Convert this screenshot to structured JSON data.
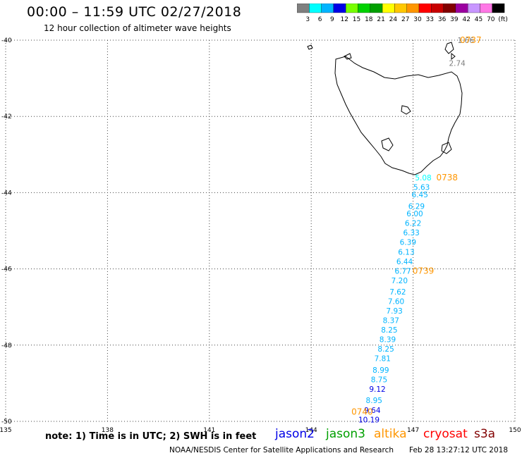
{
  "header": {
    "title": "00:00 – 11:59 UTC 02/27/2018",
    "subtitle": "12 hour collection of altimeter wave heights"
  },
  "colorbar": {
    "colors": [
      "#7f7f7f",
      "#00ffff",
      "#00b4ff",
      "#0000e6",
      "#78ff00",
      "#00d200",
      "#00a000",
      "#ffff00",
      "#ffc800",
      "#ff9600",
      "#ff0000",
      "#c80000",
      "#820000",
      "#9b00a0",
      "#c896ff",
      "#ff78e6",
      "#000000"
    ],
    "labels": [
      "3",
      "6",
      "9",
      "12",
      "15",
      "18",
      "21",
      "24",
      "27",
      "30",
      "33",
      "36",
      "39",
      "42",
      "45",
      "70",
      "(ft)"
    ]
  },
  "map": {
    "lon_range": [
      135,
      150
    ],
    "lat_range": [
      -50,
      -40
    ],
    "lon_ticks": [
      "135",
      "138",
      "141",
      "144",
      "147",
      "150"
    ],
    "lat_ticks": [
      "-40",
      "-42",
      "-44",
      "-46",
      "-48",
      "-50"
    ],
    "grid": "dotted"
  },
  "time_labels": [
    {
      "text": "0737",
      "lon": 148.7,
      "lat": -40.0
    },
    {
      "text": "0738",
      "lon": 148.0,
      "lat": -43.6
    },
    {
      "text": "0739",
      "lon": 147.3,
      "lat": -46.05
    },
    {
      "text": "0740",
      "lon": 145.5,
      "lat": -49.75
    }
  ],
  "wave_points": [
    {
      "v": "1.66",
      "lon": 148.55,
      "lat": -40.0,
      "c": "#7f7f7f"
    },
    {
      "v": "2.74",
      "lon": 148.3,
      "lat": -40.6,
      "c": "#7f7f7f"
    },
    {
      "v": "5.08",
      "lon": 147.3,
      "lat": -43.6,
      "c": "#00ffff"
    },
    {
      "v": "5.63",
      "lon": 147.25,
      "lat": -43.85,
      "c": "#00b4ff"
    },
    {
      "v": "6.45",
      "lon": 147.2,
      "lat": -44.05,
      "c": "#00b4ff"
    },
    {
      "v": "6.29",
      "lon": 147.1,
      "lat": -44.35,
      "c": "#00b4ff"
    },
    {
      "v": "6.00",
      "lon": 147.05,
      "lat": -44.55,
      "c": "#00b4ff"
    },
    {
      "v": "6.22",
      "lon": 147.0,
      "lat": -44.8,
      "c": "#00b4ff"
    },
    {
      "v": "6.33",
      "lon": 146.95,
      "lat": -45.05,
      "c": "#00b4ff"
    },
    {
      "v": "6.39",
      "lon": 146.85,
      "lat": -45.3,
      "c": "#00b4ff"
    },
    {
      "v": "6.13",
      "lon": 146.8,
      "lat": -45.55,
      "c": "#00b4ff"
    },
    {
      "v": "6.44",
      "lon": 146.75,
      "lat": -45.8,
      "c": "#00b4ff"
    },
    {
      "v": "6.77",
      "lon": 146.7,
      "lat": -46.05,
      "c": "#00b4ff"
    },
    {
      "v": "7.20",
      "lon": 146.6,
      "lat": -46.3,
      "c": "#00b4ff"
    },
    {
      "v": "7.62",
      "lon": 146.55,
      "lat": -46.6,
      "c": "#00b4ff"
    },
    {
      "v": "7.60",
      "lon": 146.5,
      "lat": -46.85,
      "c": "#00b4ff"
    },
    {
      "v": "7.93",
      "lon": 146.45,
      "lat": -47.1,
      "c": "#00b4ff"
    },
    {
      "v": "8.37",
      "lon": 146.35,
      "lat": -47.35,
      "c": "#00b4ff"
    },
    {
      "v": "8.25",
      "lon": 146.3,
      "lat": -47.6,
      "c": "#00b4ff"
    },
    {
      "v": "8.39",
      "lon": 146.25,
      "lat": -47.85,
      "c": "#00b4ff"
    },
    {
      "v": "8.25",
      "lon": 146.2,
      "lat": -48.1,
      "c": "#00b4ff"
    },
    {
      "v": "7.81",
      "lon": 146.1,
      "lat": -48.35,
      "c": "#00b4ff"
    },
    {
      "v": "8.99",
      "lon": 146.05,
      "lat": -48.65,
      "c": "#00b4ff"
    },
    {
      "v": "8.75",
      "lon": 146.0,
      "lat": -48.9,
      "c": "#00b4ff"
    },
    {
      "v": "9.12",
      "lon": 145.95,
      "lat": -49.15,
      "c": "#0000e6"
    },
    {
      "v": "8.95",
      "lon": 145.85,
      "lat": -49.45,
      "c": "#00b4ff"
    },
    {
      "v": "9.64",
      "lon": 145.8,
      "lat": -49.7,
      "c": "#0000e6"
    },
    {
      "v": "10.19",
      "lon": 145.7,
      "lat": -49.95,
      "c": "#0000e6"
    }
  ],
  "footer": {
    "note": "note: 1) Time is in UTC; 2) SWH is in feet",
    "satellites": [
      {
        "name": "jason2",
        "color": "#0000e6"
      },
      {
        "name": "jason3",
        "color": "#00a000"
      },
      {
        "name": "altika",
        "color": "#ff9600"
      },
      {
        "name": "cryosat",
        "color": "#ff0000"
      },
      {
        "name": "s3a",
        "color": "#820000"
      }
    ],
    "credit": "NOAA/NESDIS Center for Satellite Applications and Research",
    "timestamp": "Feb 28 13:27:12 UTC 2018"
  }
}
